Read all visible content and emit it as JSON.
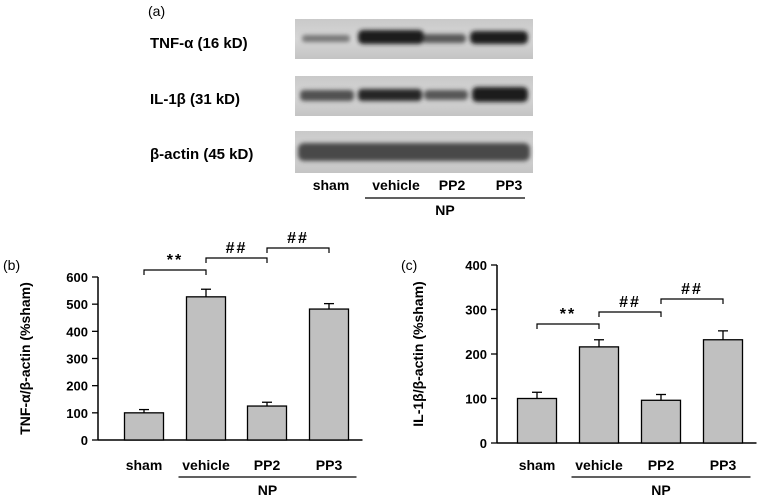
{
  "panel_a": {
    "letter": "(a)",
    "blots": [
      {
        "label": "TNF-α (16 kD)"
      },
      {
        "label": "IL-1β (31 kD)"
      },
      {
        "label": "β-actin (45 kD)"
      }
    ],
    "lanes": [
      "sham",
      "vehicle",
      "PP2",
      "PP3"
    ],
    "group_label": "NP"
  },
  "chart_data": [
    {
      "type": "bar",
      "panel": "(b)",
      "categories": [
        "sham",
        "vehicle",
        "PP2",
        "PP3"
      ],
      "values": [
        100,
        527,
        125,
        482
      ],
      "errors": [
        12,
        28,
        14,
        20
      ],
      "ylabel": "TNF-α/β-actin (%sham)",
      "ylim": [
        0,
        600
      ],
      "yticks": [
        0,
        100,
        200,
        300,
        400,
        500,
        600
      ],
      "group_label": "NP",
      "group_categories": [
        "vehicle",
        "PP2",
        "PP3"
      ],
      "bar_color": "#c0c0c0",
      "significance": [
        {
          "from": "sham",
          "to": "vehicle",
          "label": "**"
        },
        {
          "from": "vehicle",
          "to": "PP2",
          "label": "##"
        },
        {
          "from": "PP2",
          "to": "PP3",
          "label": "##"
        }
      ]
    },
    {
      "type": "bar",
      "panel": "(c)",
      "categories": [
        "sham",
        "vehicle",
        "PP2",
        "PP3"
      ],
      "values": [
        100,
        216,
        96,
        232
      ],
      "errors": [
        14,
        16,
        13,
        20
      ],
      "ylabel": "IL-1β/β-actin (%sham)",
      "ylim": [
        0,
        400
      ],
      "yticks": [
        0,
        100,
        200,
        300,
        400
      ],
      "group_label": "NP",
      "group_categories": [
        "vehicle",
        "PP2",
        "PP3"
      ],
      "bar_color": "#c0c0c0",
      "significance": [
        {
          "from": "sham",
          "to": "vehicle",
          "label": "**"
        },
        {
          "from": "vehicle",
          "to": "PP2",
          "label": "##"
        },
        {
          "from": "PP2",
          "to": "PP3",
          "label": "##"
        }
      ]
    }
  ]
}
